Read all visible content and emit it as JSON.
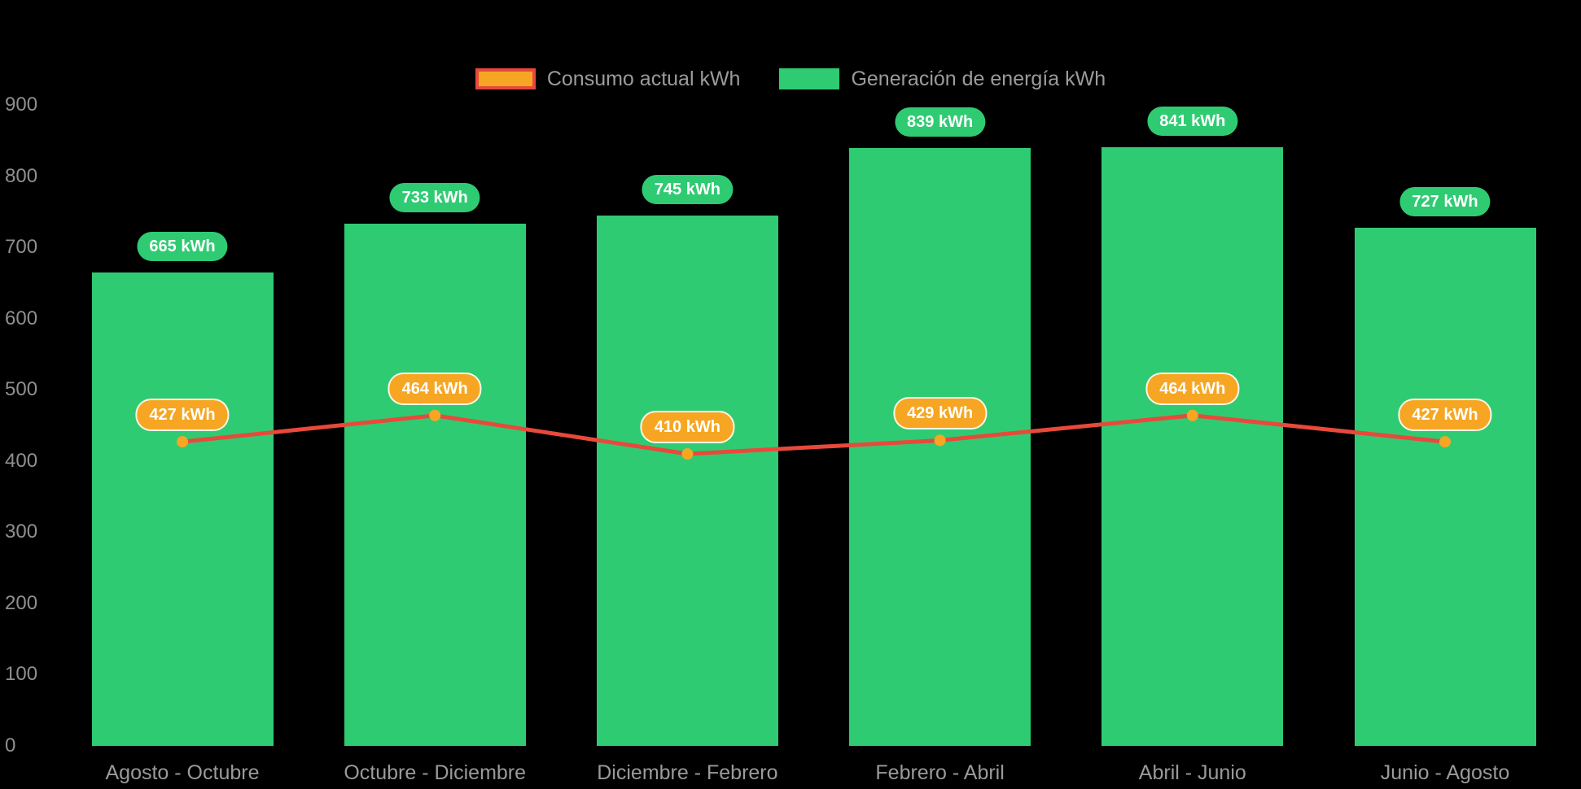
{
  "chart_data": {
    "type": "bar",
    "title": "",
    "categories": [
      "Agosto - Octubre",
      "Octubre - Diciembre",
      "Diciembre - Febrero",
      "Febrero - Abril",
      "Abril - Junio",
      "Junio - Agosto"
    ],
    "series": [
      {
        "name": "Consumo actual kWh",
        "type": "line",
        "values": [
          427,
          464,
          410,
          429,
          464,
          427
        ],
        "color": "#e8493b",
        "marker_color": "#f6a623",
        "label_bg": "#f6a623"
      },
      {
        "name": "Generación de energía kWh",
        "type": "bar",
        "values": [
          665,
          733,
          745,
          839,
          841,
          727
        ],
        "color": "#2fcb72",
        "label_bg": "#2fcb72"
      }
    ],
    "value_label_suffix": " kWh",
    "ylim": [
      0,
      900
    ],
    "yticks": [
      0,
      100,
      200,
      300,
      400,
      500,
      600,
      700,
      800,
      900
    ],
    "grid": false,
    "legend_position": "top",
    "background": "#000000",
    "axis_text_color": "#8f8f8f",
    "legend_text_color": "#9b9b9b"
  }
}
